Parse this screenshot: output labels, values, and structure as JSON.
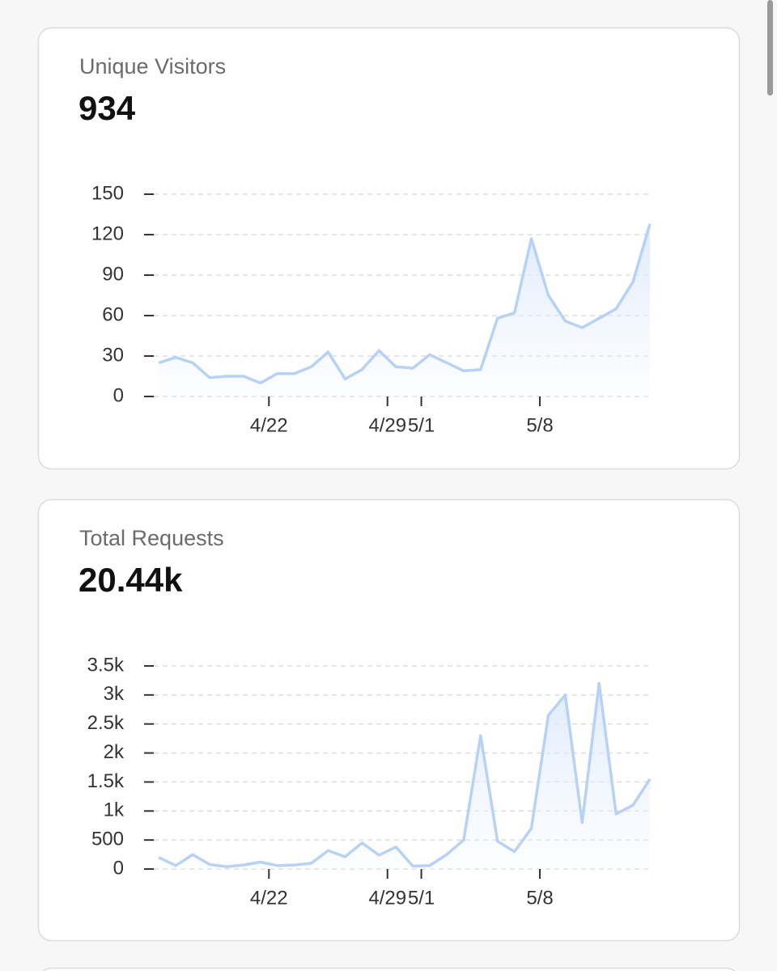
{
  "chart_data": [
    {
      "type": "line",
      "title": "Unique Visitors",
      "subtitle": "934",
      "color": "#b8d2f4",
      "x": [
        14.5,
        15.5,
        16.5,
        17.5,
        18.5,
        19.5,
        20.5,
        21.5,
        22.5,
        23.5,
        24.5,
        25.5,
        26.5,
        27.5,
        28.5,
        29.5,
        30.5,
        31.5,
        32.5,
        33.5,
        34.5,
        35.5,
        36.5,
        37.5,
        38.5,
        39.5,
        40.5,
        41.5,
        42.5,
        43.5
      ],
      "values": [
        25,
        29,
        25,
        14,
        15,
        15,
        10,
        17,
        17,
        22,
        33,
        13,
        20,
        34,
        22,
        21,
        31,
        25,
        19,
        20,
        58,
        62,
        117,
        75,
        56,
        51,
        58,
        65,
        85,
        128
      ],
      "xlim": [
        14.2,
        43.5
      ],
      "xticks": [
        {
          "value": 21,
          "label": "4/22"
        },
        {
          "value": 28,
          "label": "4/29"
        },
        {
          "value": 30,
          "label": "5/1"
        },
        {
          "value": 37,
          "label": "5/8"
        }
      ],
      "ylim": [
        0,
        150
      ],
      "yticks": [
        0,
        30,
        60,
        90,
        120,
        150
      ],
      "grid": true
    },
    {
      "type": "line",
      "title": "Total Requests",
      "subtitle": "20.44k",
      "color": "#b8d2f4",
      "x": [
        14.5,
        15.5,
        16.5,
        17.5,
        18.5,
        19.5,
        20.5,
        21.5,
        22.5,
        23.5,
        24.5,
        25.5,
        26.5,
        27.5,
        28.5,
        29.5,
        30.5,
        31.5,
        32.5,
        33.5,
        34.5,
        35.5,
        36.5,
        37.5,
        38.5,
        39.5,
        40.5,
        41.5,
        42.5,
        43.5
      ],
      "values": [
        200,
        60,
        250,
        80,
        40,
        70,
        120,
        60,
        70,
        100,
        320,
        210,
        450,
        240,
        380,
        50,
        60,
        250,
        500,
        2300,
        480,
        300,
        700,
        2650,
        3000,
        800,
        3200,
        950,
        1100,
        1550
      ],
      "xlim": [
        14.2,
        43.5
      ],
      "xticks": [
        {
          "value": 21,
          "label": "4/22"
        },
        {
          "value": 28,
          "label": "4/29"
        },
        {
          "value": 30,
          "label": "5/1"
        },
        {
          "value": 37,
          "label": "5/8"
        }
      ],
      "ylim": [
        0,
        3500
      ],
      "yticks": [
        0,
        500,
        {
          "value": 1000,
          "label": "1k"
        },
        {
          "value": 1500,
          "label": "1.5k"
        },
        {
          "value": 2000,
          "label": "2k"
        },
        {
          "value": 2500,
          "label": "2.5k"
        },
        {
          "value": 3000,
          "label": "3k"
        },
        {
          "value": 3500,
          "label": "3.5k"
        }
      ],
      "grid": true
    }
  ]
}
